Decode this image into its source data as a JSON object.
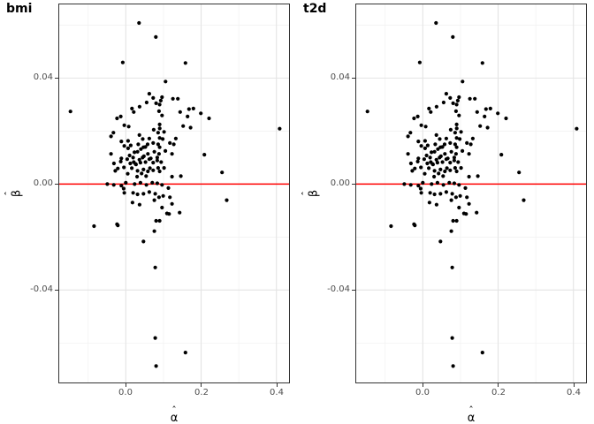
{
  "figure": {
    "background": "#ffffff"
  },
  "chart_data": {
    "type": "scatter",
    "panels": [
      {
        "title": "bmi"
      },
      {
        "title": "t2d"
      }
    ],
    "panels_note": "both panels display identical point data",
    "xlabel": "α̂",
    "ylabel": "β̂",
    "axis_letters": {
      "x_base": "α",
      "y_base": "β",
      "hat": "ˆ"
    },
    "x_tick_labels": [
      "0.0",
      "0.2",
      "0.4"
    ],
    "x_tick_values": [
      0.0,
      0.2,
      0.4
    ],
    "y_tick_labels": [
      "0.04",
      "0.00",
      "-0.04"
    ],
    "y_tick_values": [
      0.04,
      0.0,
      -0.04
    ],
    "x_minor_gridlines": [
      -0.1,
      0.1,
      0.3
    ],
    "y_minor_gridlines": [
      -0.06,
      -0.02,
      0.02,
      0.06
    ],
    "xlim": [
      -0.1768,
      0.4335
    ],
    "ylim": [
      -0.0749,
      0.0678
    ],
    "grid": true,
    "legend": "none",
    "hline": {
      "y": 0.0,
      "color": "#ff0000"
    },
    "style": {
      "point_color": "#000000",
      "point_radius": 2.1,
      "grid_major_color": "#e4e4e4",
      "grid_minor_color": "#f1f1f1",
      "panel_border_color": "#333333",
      "tick_color": "#333333",
      "tick_label_color": "#4d4d4d",
      "title_color": "#000000"
    },
    "points": [
      [
        0.0352,
        0.0608
      ],
      [
        0.0797,
        0.0555
      ],
      [
        -0.008,
        0.0459
      ],
      [
        0.1585,
        0.0457
      ],
      [
        0.1055,
        0.0387
      ],
      [
        -0.147,
        0.0274
      ],
      [
        0.4087,
        0.0209
      ],
      [
        0.0624,
        0.0341
      ],
      [
        0.0727,
        0.0325
      ],
      [
        0.0553,
        0.0308
      ],
      [
        0.0804,
        0.0305
      ],
      [
        0.0164,
        0.0285
      ],
      [
        0.0211,
        0.0272
      ],
      [
        0.0366,
        0.0292
      ],
      [
        0.0882,
        0.0275
      ],
      [
        -0.0234,
        0.0248
      ],
      [
        -0.0134,
        0.0255
      ],
      [
        -0.004,
        0.0222
      ],
      [
        0.0077,
        0.0217
      ],
      [
        -0.0328,
        0.0194
      ],
      [
        -0.0392,
        0.018
      ],
      [
        -0.0117,
        0.0161
      ],
      [
        0.0741,
        0.0205
      ],
      [
        0.0858,
        0.0194
      ],
      [
        0.0624,
        0.0172
      ],
      [
        0.0727,
        0.0155
      ],
      [
        0.0858,
        0.015
      ],
      [
        -0.004,
        0.0144
      ],
      [
        0.0469,
        0.0139
      ],
      [
        0.0312,
        0.0122
      ],
      [
        0.0586,
        0.0114
      ],
      [
        0.0757,
        0.0122
      ],
      [
        0.0882,
        0.0114
      ],
      [
        -0.0392,
        0.0114
      ],
      [
        -0.0117,
        0.0097
      ],
      [
        0.0195,
        0.01
      ],
      [
        0.0445,
        0.01
      ],
      [
        0.0664,
        0.0097
      ],
      [
        0.0835,
        0.01
      ],
      [
        0.0961,
        0.0328
      ],
      [
        0.125,
        0.0322
      ],
      [
        0.1383,
        0.0322
      ],
      [
        0.0898,
        0.03
      ],
      [
        0.1444,
        0.0272
      ],
      [
        0.1679,
        0.0283
      ],
      [
        0.1796,
        0.0285
      ],
      [
        0.1641,
        0.0255
      ],
      [
        0.1993,
        0.0267
      ],
      [
        0.2211,
        0.0248
      ],
      [
        0.0961,
        0.0259
      ],
      [
        0.0898,
        0.0225
      ],
      [
        0.1524,
        0.0219
      ],
      [
        0.1719,
        0.0213
      ],
      [
        0.1015,
        0.0197
      ],
      [
        0.0898,
        0.0174
      ],
      [
        0.1327,
        0.0172
      ],
      [
        0.1172,
        0.0155
      ],
      [
        0.1273,
        0.015
      ],
      [
        0.0898,
        0.0139
      ],
      [
        0.1226,
        0.0114
      ],
      [
        0.2087,
        0.0111
      ],
      [
        -0.0314,
        0.0078
      ],
      [
        -0.0134,
        0.0085
      ],
      [
        0.0038,
        0.0094
      ],
      [
        0.0211,
        0.0083
      ],
      [
        -0.0211,
        0.0059
      ],
      [
        0.0272,
        0.0074
      ],
      [
        0.0389,
        0.0081
      ],
      [
        0.0523,
        0.0083
      ],
      [
        0.0624,
        0.0094
      ],
      [
        0.0727,
        0.0081
      ],
      [
        0.0835,
        0.0089
      ],
      [
        0.0312,
        0.005
      ],
      [
        0.0469,
        0.0055
      ],
      [
        0.0586,
        0.0048
      ],
      [
        0.0727,
        0.0052
      ],
      [
        0.0858,
        0.0061
      ],
      [
        -0.0492,
        0.0
      ],
      [
        -0.0117,
        -0.0006
      ],
      [
        -0.0056,
        -0.0017
      ],
      [
        0.0234,
        0.0
      ],
      [
        0.0389,
        0.0005
      ],
      [
        0.0546,
        -0.0003
      ],
      [
        0.0703,
        0.0005
      ],
      [
        0.0835,
        0.0003
      ],
      [
        0.0195,
        -0.0033
      ],
      [
        0.0312,
        -0.0039
      ],
      [
        0.0469,
        -0.0037
      ],
      [
        0.0624,
        -0.003
      ],
      [
        0.0781,
        -0.0037
      ],
      [
        0.0178,
        -0.007
      ],
      [
        0.0366,
        -0.0078
      ],
      [
        0.0757,
        -0.0061
      ],
      [
        0.0882,
        -0.005
      ],
      [
        -0.0234,
        -0.0152
      ],
      [
        0.0804,
        -0.0139
      ],
      [
        0.0938,
        0.0083
      ],
      [
        0.1015,
        0.0061
      ],
      [
        0.0898,
        0.0048
      ],
      [
        0.1226,
        0.0028
      ],
      [
        0.1461,
        0.003
      ],
      [
        0.0961,
        -0.0003
      ],
      [
        0.1132,
        -0.0015
      ],
      [
        0.0992,
        -0.0045
      ],
      [
        0.1172,
        -0.005
      ],
      [
        0.1226,
        -0.0075
      ],
      [
        0.0961,
        -0.0089
      ],
      [
        0.1093,
        -0.0111
      ],
      [
        0.143,
        -0.0108
      ],
      [
        0.0898,
        -0.0139
      ],
      [
        0.2556,
        0.0044
      ],
      [
        0.268,
        -0.0061
      ],
      [
        -0.0844,
        -0.0159
      ],
      [
        -0.0211,
        -0.0156
      ],
      [
        0.0757,
        -0.0178
      ],
      [
        0.0469,
        -0.0217
      ],
      [
        0.0781,
        -0.0315
      ],
      [
        0.0781,
        -0.0581
      ],
      [
        0.1585,
        -0.0636
      ],
      [
        0.0804,
        -0.0687
      ],
      [
        0.036,
        0.0185
      ],
      [
        0.045,
        0.017
      ],
      [
        0.052,
        0.014
      ],
      [
        0.04,
        0.0132
      ],
      [
        0.033,
        0.015
      ],
      [
        0.058,
        0.015
      ],
      [
        0.048,
        0.0105
      ],
      [
        0.036,
        0.0092
      ],
      [
        0.026,
        0.0076
      ],
      [
        0.064,
        0.006
      ],
      [
        0.054,
        0.003
      ],
      [
        0.042,
        0.004
      ],
      [
        0.03,
        0.0028
      ],
      [
        0.016,
        0.006
      ],
      [
        0.01,
        0.0108
      ],
      [
        0.006,
        0.0135
      ],
      [
        0.023,
        0.012
      ],
      [
        0.013,
        0.0146
      ],
      [
        0.09,
        0.021
      ],
      [
        0.105,
        0.0125
      ],
      [
        0.098,
        0.017
      ],
      [
        0.115,
        -0.0113
      ],
      [
        0.093,
        0.0315
      ],
      [
        0.006,
        0.0163
      ],
      [
        0.012,
        0.0078
      ],
      [
        -0.028,
        0.005
      ],
      [
        -0.005,
        0.0063
      ],
      [
        -0.032,
        -0.0003
      ],
      [
        0.005,
        0.0039
      ],
      [
        0.0,
        0.0005
      ],
      [
        -0.004,
        -0.0033
      ]
    ]
  }
}
